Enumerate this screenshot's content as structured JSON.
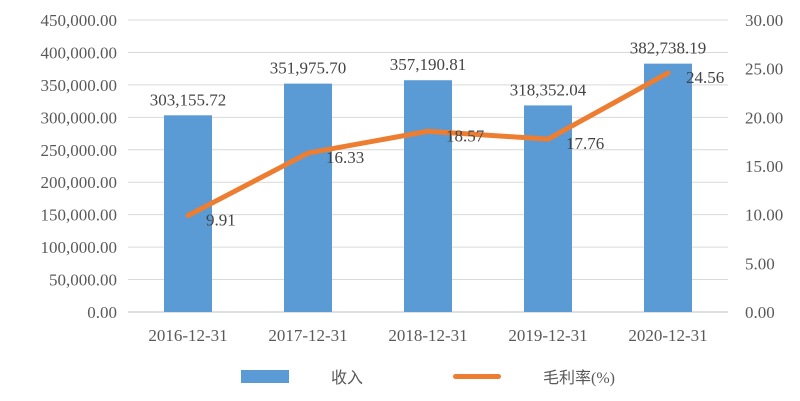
{
  "chart_data": {
    "type": "combo",
    "categories": [
      "2016-12-31",
      "2017-12-31",
      "2018-12-31",
      "2019-12-31",
      "2020-12-31"
    ],
    "series": [
      {
        "name": "收入",
        "type": "bar",
        "color": "#5B9BD5",
        "axis": "left",
        "values": [
          303155.72,
          351975.7,
          357190.81,
          318352.04,
          382738.19
        ],
        "labels": [
          "303,155.72",
          "351,975.70",
          "357,190.81",
          "318,352.04",
          "382,738.19"
        ]
      },
      {
        "name": "毛利率(%)",
        "type": "line",
        "color": "#ED7D31",
        "axis": "right",
        "values": [
          9.91,
          16.33,
          18.57,
          17.76,
          24.56
        ],
        "labels": [
          "9.91",
          "16.33",
          "18.57",
          "17.76",
          "24.56"
        ]
      }
    ],
    "axes": {
      "left": {
        "min": 0,
        "max": 450000,
        "step": 50000,
        "tick_labels": [
          "450,000.00",
          "400,000.00",
          "350,000.00",
          "300,000.00",
          "250,000.00",
          "200,000.00",
          "150,000.00",
          "100,000.00",
          "50,000.00",
          "0.00"
        ]
      },
      "right": {
        "min": 0,
        "max": 30,
        "step": 5,
        "tick_labels": [
          "30.00",
          "25.00",
          "20.00",
          "15.00",
          "10.00",
          "5.00",
          "0.00"
        ]
      }
    },
    "grid": true,
    "colors": {
      "gridline": "#D9D9D9",
      "axis_line": "#BFBFBF",
      "tick_text": "#595959",
      "label_text": "#444444",
      "background": "#FFFFFF"
    },
    "legend": [
      {
        "label": "收入",
        "color": "#5B9BD5",
        "marker": "bar"
      },
      {
        "label": "毛利率(%)",
        "color": "#ED7D31",
        "marker": "line"
      }
    ],
    "legend_position": "bottom",
    "title": "",
    "xlabel": "",
    "ylabel": ""
  }
}
